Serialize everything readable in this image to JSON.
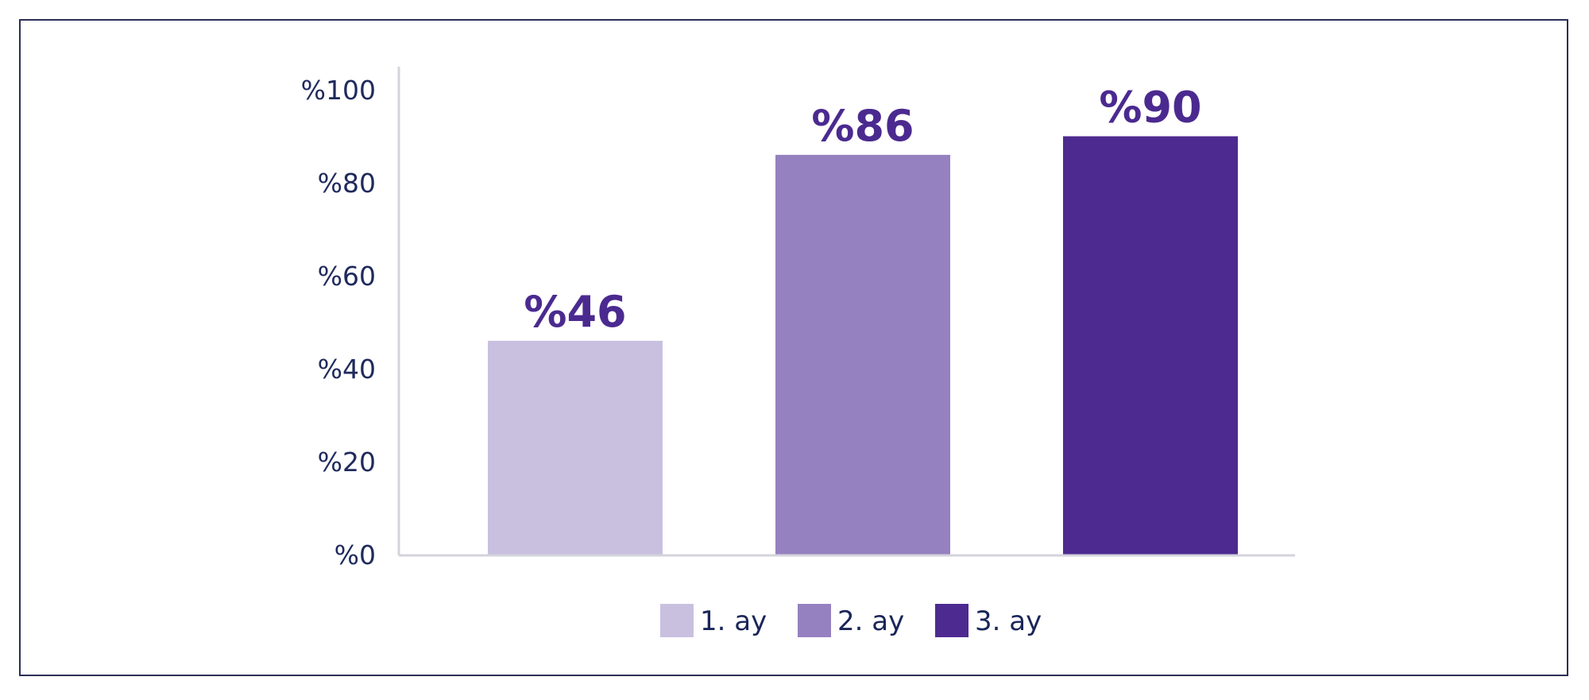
{
  "chart_data": {
    "type": "bar",
    "categories": [
      "1. ay",
      "2. ay",
      "3. ay"
    ],
    "values": [
      46,
      86,
      90
    ],
    "data_labels": [
      "%46",
      "%86",
      "%90"
    ],
    "colors": [
      "#c9c0e0",
      "#9581bf",
      "#4d2a90"
    ],
    "ylim": [
      0,
      100
    ],
    "yticks": [
      {
        "value": 0,
        "label": "%0"
      },
      {
        "value": 20,
        "label": "%20"
      },
      {
        "value": 40,
        "label": "%40"
      },
      {
        "value": 60,
        "label": "%60"
      },
      {
        "value": 80,
        "label": "%80"
      },
      {
        "value": 100,
        "label": "%100"
      }
    ],
    "title": "",
    "xlabel": "",
    "ylabel": "",
    "grid": false,
    "legend": {
      "position": "bottom",
      "entries": [
        "1. ay",
        "2. ay",
        "3. ay"
      ]
    }
  }
}
